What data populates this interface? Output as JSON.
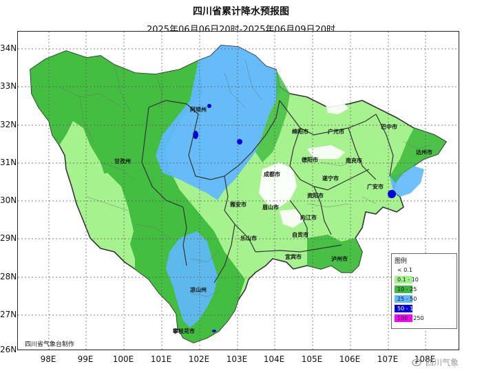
{
  "title": "四川省累计降水预报图",
  "subtitle": "2025年06月06日20时-2025年06月09日20时",
  "lat_labels": [
    "34N",
    "33N",
    "32N",
    "31N",
    "30N",
    "29N",
    "28N",
    "27N",
    "26N"
  ],
  "lon_labels": [
    "98E",
    "99E",
    "100E",
    "101E",
    "102E",
    "103E",
    "104E",
    "105E",
    "106E",
    "107E",
    "108E"
  ],
  "legend": {
    "title": "图例",
    "items": [
      {
        "label": "< 0.1",
        "color": "#ffffff"
      },
      {
        "label": "0.1 - 10",
        "color": "#a6f28f"
      },
      {
        "label": "10 - 25",
        "color": "#3dba3d"
      },
      {
        "label": "25 - 50",
        "color": "#61b8ff"
      },
      {
        "label": "50 - 100",
        "color": "#0000e1"
      },
      {
        "label": "100 - 250",
        "color": "#fa00fa"
      }
    ]
  },
  "credit": "四川省气象台制作",
  "watermark": "四川气象",
  "map_features": {
    "province": "四川省",
    "colors": {
      "light_green": "#a6f28f",
      "mid_green": "#3dba3d",
      "light_blue": "#61b8ff",
      "deep_blue": "#0000e1",
      "white": "#ffffff",
      "border": "#333333",
      "grid": "#555555"
    }
  },
  "cities": [
    {
      "name": "阿坝州",
      "region": "north"
    },
    {
      "name": "甘孜州",
      "region": "west"
    },
    {
      "name": "广元市",
      "region": "northeast"
    },
    {
      "name": "巴中市",
      "region": "northeast"
    },
    {
      "name": "绵阳市",
      "region": "north-central"
    },
    {
      "name": "德阳市",
      "region": "central"
    },
    {
      "name": "成都市",
      "region": "central"
    },
    {
      "name": "南充市",
      "region": "east-central"
    },
    {
      "name": "达州市",
      "region": "east"
    },
    {
      "name": "广安市",
      "region": "east"
    },
    {
      "name": "遂宁市",
      "region": "central"
    },
    {
      "name": "资阳市",
      "region": "central"
    },
    {
      "name": "雅安市",
      "region": "west-central"
    },
    {
      "name": "眉山市",
      "region": "central"
    },
    {
      "name": "乐山市",
      "region": "south-central"
    },
    {
      "name": "内江市",
      "region": "south-central"
    },
    {
      "name": "自贡市",
      "region": "south"
    },
    {
      "name": "宜宾市",
      "region": "south"
    },
    {
      "name": "泸州市",
      "region": "south"
    },
    {
      "name": "凉山州",
      "region": "southwest"
    },
    {
      "name": "攀枝花市",
      "region": "far south"
    }
  ]
}
